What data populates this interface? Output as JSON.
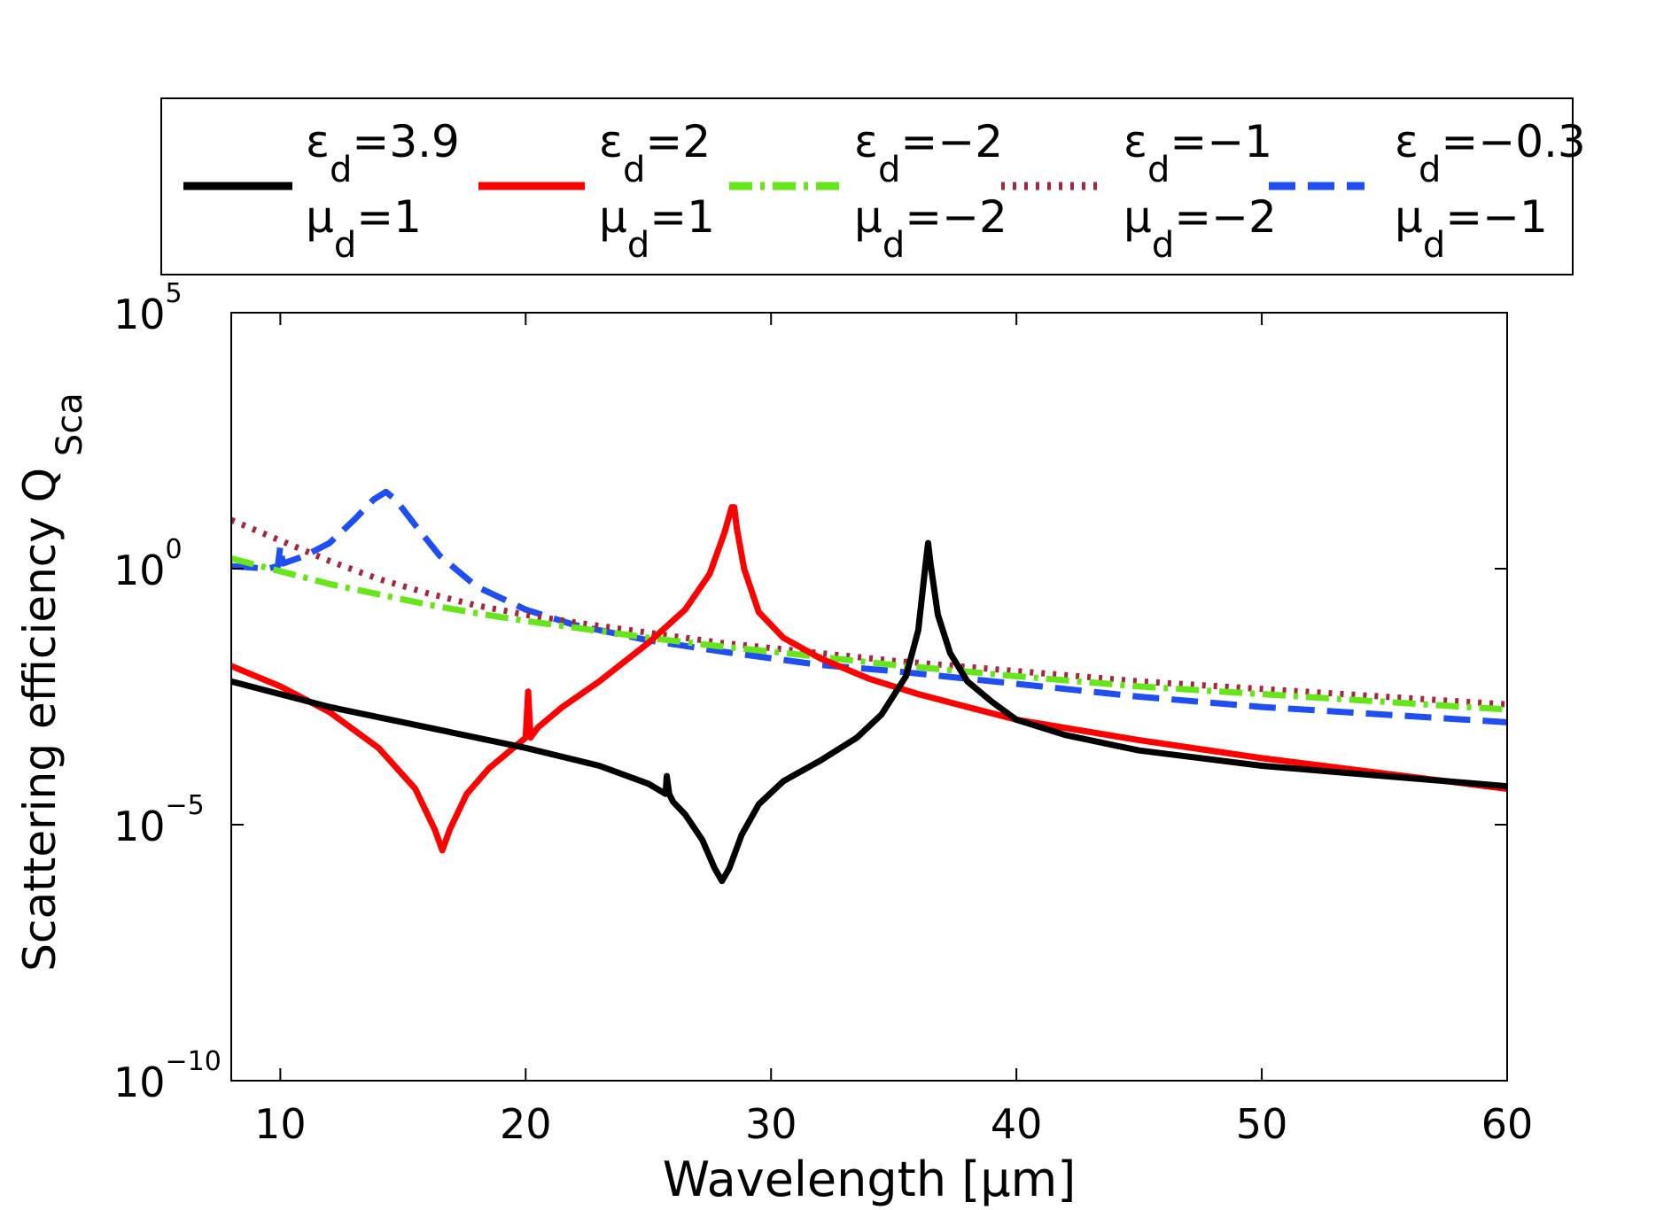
{
  "chart_data": {
    "type": "line",
    "title": "",
    "xlabel": "Wavelength [μm]",
    "ylabel": "Scattering efficiency Q",
    "ylabel_sub": "Sca",
    "xlim": [
      8,
      60
    ],
    "ylim_log10": [
      -10,
      5
    ],
    "yscale": "log",
    "x_ticks": [
      10,
      20,
      30,
      40,
      50,
      60
    ],
    "x_tick_labels": [
      "10",
      "20",
      "30",
      "40",
      "50",
      "60"
    ],
    "y_ticks": [
      {
        "exp": 5,
        "base": "10",
        "sup": "5"
      },
      {
        "exp": 0,
        "base": "10",
        "sup": "0"
      },
      {
        "exp": -5,
        "base": "10",
        "sup": "−5"
      },
      {
        "exp": -10,
        "base": "10",
        "sup": "−10"
      }
    ],
    "grid": false,
    "legend_position": "top",
    "series": [
      {
        "name": "eps3.9_mu1",
        "eps_label": "ε",
        "eps_sub": "d",
        "eps_val": "=3.9",
        "mu_label": "μ",
        "mu_sub": "d",
        "mu_val": "=1",
        "color": "#000000",
        "dash": "solid",
        "x": [
          8,
          12,
          16,
          20,
          23,
          25,
          25.7,
          25.75,
          25.85,
          26.0,
          26.5,
          27.2,
          27.7,
          28.0,
          28.3,
          28.8,
          29.5,
          30.5,
          32,
          33.5,
          34.5,
          35.5,
          36.0,
          36.3,
          36.4,
          36.5,
          36.8,
          37.3,
          38,
          39,
          40,
          42,
          45,
          50,
          55,
          60
        ],
        "log10": [
          -2.2,
          -2.7,
          -3.1,
          -3.5,
          -3.85,
          -4.2,
          -4.4,
          -4.05,
          -4.4,
          -4.55,
          -4.8,
          -5.3,
          -5.85,
          -6.1,
          -5.85,
          -5.2,
          -4.6,
          -4.15,
          -3.75,
          -3.3,
          -2.85,
          -2.1,
          -1.2,
          0.1,
          0.5,
          0.1,
          -0.9,
          -1.65,
          -2.2,
          -2.6,
          -2.95,
          -3.25,
          -3.55,
          -3.85,
          -4.05,
          -4.25
        ]
      },
      {
        "name": "eps2_mu1",
        "eps_label": "ε",
        "eps_sub": "d",
        "eps_val": "=2",
        "mu_label": "μ",
        "mu_sub": "d",
        "mu_val": "=1",
        "color": "#ff0000",
        "dash": "solid",
        "x": [
          8,
          10,
          12,
          14,
          15.5,
          16.3,
          16.6,
          16.9,
          17.6,
          18.5,
          19.5,
          20.0,
          20.1,
          20.2,
          20.5,
          21.5,
          23,
          25,
          26.5,
          27.5,
          28.1,
          28.4,
          28.5,
          28.6,
          28.9,
          29.5,
          30.5,
          32,
          34,
          36,
          38,
          40,
          45,
          50,
          55,
          60
        ],
        "log10": [
          -1.9,
          -2.3,
          -2.8,
          -3.5,
          -4.3,
          -5.1,
          -5.5,
          -5.1,
          -4.4,
          -3.9,
          -3.5,
          -3.3,
          -2.4,
          -3.3,
          -3.1,
          -2.7,
          -2.2,
          -1.45,
          -0.8,
          -0.1,
          0.7,
          1.2,
          1.2,
          0.8,
          0.0,
          -0.85,
          -1.35,
          -1.75,
          -2.15,
          -2.45,
          -2.7,
          -2.95,
          -3.35,
          -3.7,
          -4.0,
          -4.3
        ]
      },
      {
        "name": "eps-2_mu-2",
        "eps_label": "ε",
        "eps_sub": "d",
        "eps_val": "=−2",
        "mu_label": "μ",
        "mu_sub": "d",
        "mu_val": "=−2",
        "color": "#66e61a",
        "dash": "dashdot",
        "x": [
          8,
          10,
          12,
          14,
          16,
          18,
          20,
          22,
          25,
          28,
          30,
          35,
          40,
          45,
          50,
          55,
          60
        ],
        "log10": [
          0.2,
          -0.05,
          -0.3,
          -0.5,
          -0.7,
          -0.87,
          -1.02,
          -1.15,
          -1.35,
          -1.52,
          -1.62,
          -1.88,
          -2.1,
          -2.3,
          -2.45,
          -2.6,
          -2.75
        ]
      },
      {
        "name": "eps-1_mu-2",
        "eps_label": "ε",
        "eps_sub": "d",
        "eps_val": "=−1",
        "mu_label": "μ",
        "mu_sub": "d",
        "mu_val": "=−2",
        "color": "#a6263f",
        "dash": "dotted",
        "x": [
          8,
          10,
          12,
          14,
          16,
          18,
          20,
          22,
          25,
          28,
          30,
          35,
          40,
          45,
          50,
          55,
          60
        ],
        "log10": [
          0.95,
          0.55,
          0.15,
          -0.2,
          -0.48,
          -0.72,
          -0.9,
          -1.05,
          -1.25,
          -1.45,
          -1.55,
          -1.8,
          -2.0,
          -2.2,
          -2.35,
          -2.5,
          -2.65
        ]
      },
      {
        "name": "eps-0.3_mu-1",
        "eps_label": "ε",
        "eps_sub": "d",
        "eps_val": "=−0.3",
        "mu_label": "μ",
        "mu_sub": "d",
        "mu_val": "=−1",
        "color": "#1f4ff2",
        "dash": "dashed",
        "x": [
          8,
          9.5,
          9.9,
          10.0,
          10.1,
          11,
          12,
          13,
          13.8,
          14.3,
          14.7,
          15.5,
          16.5,
          18,
          20,
          22,
          25,
          28,
          30,
          32,
          35,
          40,
          45,
          50,
          55,
          60
        ],
        "log10": [
          0.05,
          0.0,
          0.05,
          0.45,
          0.1,
          0.25,
          0.5,
          0.95,
          1.35,
          1.5,
          1.35,
          0.85,
          0.25,
          -0.35,
          -0.8,
          -1.1,
          -1.4,
          -1.62,
          -1.75,
          -1.88,
          -2.0,
          -2.25,
          -2.5,
          -2.7,
          -2.85,
          -3.0
        ]
      }
    ]
  }
}
